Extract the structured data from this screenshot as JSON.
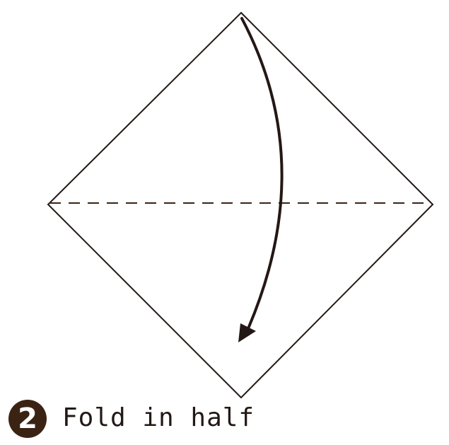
{
  "step": {
    "number": "2",
    "instruction": "Fold in half"
  },
  "colors": {
    "outline": "#231815",
    "arrow": "#231815",
    "fold_line": "#3b2314",
    "badge": "#3b2314",
    "background": "#ffffff"
  }
}
